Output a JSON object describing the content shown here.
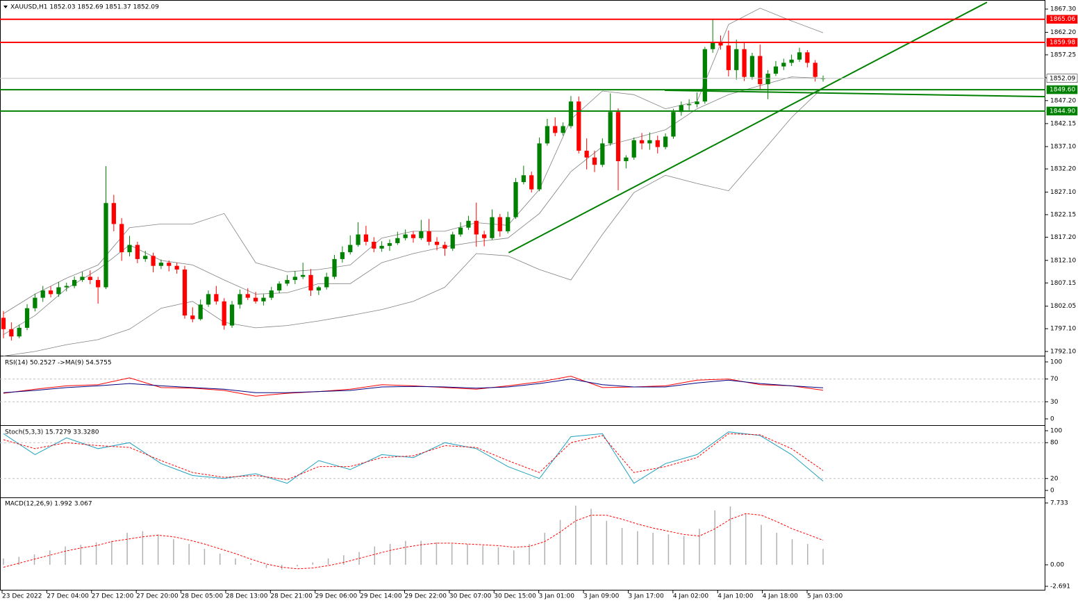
{
  "chart_data": [
    {
      "type": "candlestick",
      "title": "XAUUSD,H1  1852.03 1852.69 1851.37 1852.09",
      "colors": {
        "bull": "#008000",
        "bear": "#ff0000"
      },
      "xlim": [
        -0.44,
        132.2
      ],
      "ylim": [
        1791.48,
        1868.53
      ],
      "yticks": [
        {
          "value": 1867.3,
          "label": "1867.30"
        },
        {
          "value": 1862.2,
          "label": "1862.20"
        },
        {
          "value": 1857.25,
          "label": "1857.25"
        },
        {
          "value": 1852.2,
          "label": "1852.20"
        },
        {
          "value": 1847.2,
          "label": "1847.20"
        },
        {
          "value": 1842.15,
          "label": "1842.15"
        },
        {
          "value": 1837.1,
          "label": "1837.10"
        },
        {
          "value": 1832.2,
          "label": "1832.20"
        },
        {
          "value": 1827.1,
          "label": "1827.10"
        },
        {
          "value": 1822.15,
          "label": "1822.15"
        },
        {
          "value": 1817.2,
          "label": "1817.20"
        },
        {
          "value": 1812.1,
          "label": "1812.10"
        },
        {
          "value": 1807.15,
          "label": "1807.15"
        },
        {
          "value": 1802.05,
          "label": "1802.05"
        },
        {
          "value": 1797.1,
          "label": "1797.10"
        },
        {
          "value": 1792.1,
          "label": "1792.10"
        }
      ],
      "time_axis": [
        "23 Dec 2022",
        "27 Dec 04:00",
        "27 Dec 12:00",
        "27 Dec 20:00",
        "28 Dec 05:00",
        "28 Dec 13:00",
        "28 Dec 21:00",
        "29 Dec 06:00",
        "29 Dec 14:00",
        "29 Dec 22:00",
        "30 Dec 07:00",
        "30 Dec 15:00",
        "3 Jan 01:00",
        "3 Jan 09:00",
        "3 Jan 17:00",
        "4 Jan 02:00",
        "4 Jan 10:00",
        "4 Jan 18:00",
        "5 Jan 03:00"
      ],
      "ohlc": [
        [
          1799.5,
          1801,
          1795,
          1797.0
        ],
        [
          1797.0,
          1798.5,
          1794.5,
          1795.4
        ],
        [
          1795.4,
          1798,
          1795,
          1797.3
        ],
        [
          1797.3,
          1802.5,
          1796.8,
          1801.6
        ],
        [
          1801.6,
          1804.8,
          1800.9,
          1803.9
        ],
        [
          1803.9,
          1806.5,
          1803,
          1805.5
        ],
        [
          1805.5,
          1806.4,
          1804,
          1804.7
        ],
        [
          1804.7,
          1807.4,
          1804.1,
          1806.2
        ],
        [
          1806.2,
          1807.2,
          1805.3,
          1806.5
        ],
        [
          1806.5,
          1808.6,
          1806,
          1807.8
        ],
        [
          1807.8,
          1809.6,
          1807.4,
          1808.5
        ],
        [
          1808.5,
          1809.9,
          1806.9,
          1807.8
        ],
        [
          1807.8,
          1808.5,
          1802.6,
          1806.2
        ],
        [
          1806.2,
          1832.8,
          1805.8,
          1824.7
        ],
        [
          1824.7,
          1826.5,
          1818.5,
          1820.1
        ],
        [
          1820.1,
          1821.4,
          1812,
          1813.9
        ],
        [
          1813.9,
          1817.5,
          1813,
          1815.5
        ],
        [
          1815.5,
          1816.2,
          1811.5,
          1812.4
        ],
        [
          1812.4,
          1814.2,
          1811.8,
          1813.1
        ],
        [
          1813.1,
          1813.8,
          1809.5,
          1810.9
        ],
        [
          1810.9,
          1812.3,
          1810.2,
          1811.6
        ],
        [
          1811.6,
          1812.1,
          1809.7,
          1810.9
        ],
        [
          1810.9,
          1811.6,
          1809.2,
          1810.1
        ],
        [
          1810.1,
          1810.9,
          1799.3,
          1800.0
        ],
        [
          1800.0,
          1801.8,
          1798.5,
          1799.2
        ],
        [
          1799.2,
          1803.5,
          1798.9,
          1802.4
        ],
        [
          1802.4,
          1805.5,
          1801.9,
          1804.7
        ],
        [
          1804.7,
          1806.5,
          1802.4,
          1803.1
        ],
        [
          1803.1,
          1803.8,
          1796.9,
          1797.8
        ],
        [
          1797.8,
          1803.2,
          1797.3,
          1802.4
        ],
        [
          1802.4,
          1805.7,
          1801.5,
          1804.7
        ],
        [
          1804.7,
          1806,
          1803.4,
          1803.9
        ],
        [
          1803.9,
          1805.2,
          1802.6,
          1803.1
        ],
        [
          1803.1,
          1804.7,
          1802.2,
          1803.9
        ],
        [
          1803.9,
          1806.3,
          1803.4,
          1805.5
        ],
        [
          1805.5,
          1807.5,
          1804.9,
          1807.0
        ],
        [
          1807.0,
          1808.9,
          1806.5,
          1807.8
        ],
        [
          1807.8,
          1809.8,
          1806.9,
          1808.5
        ],
        [
          1808.5,
          1811.6,
          1808,
          1808.9
        ],
        [
          1808.9,
          1810.2,
          1804.3,
          1805.5
        ],
        [
          1805.5,
          1806.5,
          1804.5,
          1806.2
        ],
        [
          1806.2,
          1809.4,
          1805.7,
          1808.5
        ],
        [
          1808.5,
          1813.3,
          1808,
          1812.4
        ],
        [
          1812.4,
          1815.2,
          1811.6,
          1813.9
        ],
        [
          1813.9,
          1817.6,
          1813.4,
          1815.5
        ],
        [
          1815.5,
          1820.5,
          1815.1,
          1817.8
        ],
        [
          1817.8,
          1819.7,
          1815.4,
          1816.2
        ],
        [
          1816.2,
          1817.2,
          1813.9,
          1814.7
        ],
        [
          1814.7,
          1816.3,
          1814,
          1815.3
        ],
        [
          1815.3,
          1816.7,
          1814.2,
          1815.9
        ],
        [
          1815.9,
          1818.4,
          1815.5,
          1817.0
        ],
        [
          1817.0,
          1818.9,
          1816.5,
          1817.8
        ],
        [
          1817.8,
          1818.5,
          1816,
          1817.0
        ],
        [
          1817.0,
          1821,
          1816.6,
          1818.5
        ],
        [
          1818.5,
          1821.2,
          1815.4,
          1816.2
        ],
        [
          1816.2,
          1817.2,
          1814.3,
          1815.5
        ],
        [
          1815.5,
          1816.2,
          1813.1,
          1814.7
        ],
        [
          1814.7,
          1818.4,
          1814.2,
          1817.8
        ],
        [
          1817.8,
          1820.5,
          1817.3,
          1819.3
        ],
        [
          1819.3,
          1821.9,
          1818.8,
          1820.8
        ],
        [
          1820.8,
          1824.8,
          1815.1,
          1817.8
        ],
        [
          1817.8,
          1818.6,
          1815.2,
          1817.0
        ],
        [
          1817.0,
          1823.3,
          1816.6,
          1821.6
        ],
        [
          1821.6,
          1822.3,
          1817.3,
          1818.5
        ],
        [
          1818.5,
          1822.8,
          1818,
          1821.6
        ],
        [
          1821.6,
          1830.2,
          1821.2,
          1829.3
        ],
        [
          1829.3,
          1832.9,
          1828.8,
          1830.8
        ],
        [
          1830.8,
          1831.6,
          1827,
          1827.7
        ],
        [
          1827.7,
          1839.1,
          1827.3,
          1837.8
        ],
        [
          1837.8,
          1843.2,
          1837.3,
          1841.6
        ],
        [
          1841.6,
          1843.5,
          1839.4,
          1840.1
        ],
        [
          1840.1,
          1842.4,
          1839.5,
          1841.6
        ],
        [
          1841.6,
          1848.2,
          1841.1,
          1847.0
        ],
        [
          1847.0,
          1848.1,
          1835.6,
          1836.2
        ],
        [
          1836.2,
          1838.9,
          1832.1,
          1834.7
        ],
        [
          1834.7,
          1836.2,
          1831.5,
          1833.1
        ],
        [
          1833.1,
          1838.9,
          1832.6,
          1837.8
        ],
        [
          1837.8,
          1848.8,
          1837.3,
          1844.7
        ],
        [
          1844.7,
          1845.5,
          1827.5,
          1833.9
        ],
        [
          1833.9,
          1835.2,
          1832.3,
          1834.7
        ],
        [
          1834.7,
          1839.1,
          1834.2,
          1838.5
        ],
        [
          1838.5,
          1840.1,
          1836.5,
          1837.8
        ],
        [
          1837.8,
          1840.2,
          1836.4,
          1838.5
        ],
        [
          1838.5,
          1839.5,
          1835.6,
          1837.0
        ],
        [
          1837.0,
          1840.0,
          1836.5,
          1839.3
        ],
        [
          1839.3,
          1845.4,
          1838.8,
          1844.7
        ],
        [
          1844.7,
          1847.0,
          1843.9,
          1846.2
        ],
        [
          1846.2,
          1847.5,
          1845.1,
          1846.4
        ],
        [
          1846.4,
          1849.0,
          1845.7,
          1847.0
        ],
        [
          1847.0,
          1859.0,
          1846.5,
          1858.5
        ],
        [
          1858.5,
          1865.1,
          1857.7,
          1860.1
        ],
        [
          1860.1,
          1861.5,
          1858.4,
          1859.3
        ],
        [
          1859.3,
          1862.6,
          1852.5,
          1853.9
        ],
        [
          1853.9,
          1860.6,
          1851.8,
          1858.5
        ],
        [
          1858.5,
          1860.1,
          1851.5,
          1852.4
        ],
        [
          1852.4,
          1857.7,
          1851.8,
          1857.0
        ],
        [
          1857.0,
          1859.5,
          1849.7,
          1850.8
        ],
        [
          1850.8,
          1853.9,
          1847.5,
          1853.1
        ],
        [
          1853.1,
          1855.9,
          1852.6,
          1854.7
        ],
        [
          1854.7,
          1856.4,
          1853.9,
          1855.5
        ],
        [
          1855.5,
          1857.3,
          1854.8,
          1856.2
        ],
        [
          1856.2,
          1858.8,
          1855.7,
          1857.8
        ],
        [
          1857.8,
          1858.3,
          1854.5,
          1855.5
        ],
        [
          1855.5,
          1856.1,
          1851.4,
          1852.4
        ],
        [
          1852.03,
          1852.69,
          1851.37,
          1852.09
        ]
      ],
      "bands": [
        {
          "color": "#808080",
          "values": [
            1800.4,
            1804.7,
            1808.2,
            1811.1,
            1819.3,
            1820.1,
            1820.1,
            1822.4,
            1811.6,
            1809.6,
            1810.1,
            1811.1,
            1817.0,
            1818.5,
            1818.5,
            1820.4,
            1819.8,
            1827.7,
            1843.1,
            1849.3,
            1848.5,
            1845.4,
            1847.0,
            1863.9,
            1867.5,
            1864.7,
            1862.1
          ]
        },
        {
          "color": "#808080",
          "values": [
            1795.8,
            1800.0,
            1805.9,
            1810.1,
            1815.5,
            1812.1,
            1811.1,
            1807.8,
            1804.7,
            1805.0,
            1807.0,
            1807.0,
            1811.6,
            1813.6,
            1815.1,
            1816.2,
            1817.0,
            1822.4,
            1831.6,
            1837.1,
            1838.9,
            1840.8,
            1845.4,
            1848.5,
            1850.5,
            1852.4,
            1852.1
          ]
        },
        {
          "color": "#808080",
          "values": [
            1791.1,
            1792.1,
            1793.6,
            1794.7,
            1797.0,
            1801.6,
            1803.1,
            1798.5,
            1797.3,
            1797.8,
            1798.8,
            1800.0,
            1801.3,
            1803.1,
            1806.2,
            1813.6,
            1813.1,
            1810.1,
            1807.8,
            1817.8,
            1827.0,
            1830.8,
            1829.0,
            1827.4,
            1835.4,
            1843.5,
            1850.1
          ]
        }
      ],
      "trendlines": [
        {
          "color": "#008000",
          "x": [
            64.1,
            124.8
          ],
          "y": [
            1813.8,
            1868.8
          ]
        },
        {
          "color": "#008000",
          "x": [
            83.9,
            132.2
          ],
          "y": [
            1849.45,
            1848.06
          ]
        }
      ],
      "levels": [
        {
          "price": 1865.06,
          "color": "#ff0000",
          "box": "#ff0000",
          "text_color": "#ffffff"
        },
        {
          "price": 1859.98,
          "color": "#ff0000",
          "box": "#ff0000",
          "text_color": "#ffffff"
        },
        {
          "price": 1852.09,
          "color": "#c0c0c0",
          "box": "#ffffff",
          "text_color": "#000000"
        },
        {
          "price": {
            "value": 1849.6,
            "label": "1849.60"
          },
          "color": "#008000",
          "box": "#008000",
          "text_color": "#ffffff"
        },
        {
          "price": {
            "value": 1844.9,
            "label": "1844.90"
          },
          "color": "#008000",
          "box": "#008000",
          "text_color": "#ffffff"
        }
      ]
    },
    {
      "type": "indicator",
      "title": "RSI(14) 50.2527 ->MA(9) 54.5755",
      "ylim": [
        -9.8,
        108.5
      ],
      "yticks": [
        0,
        30,
        70,
        100
      ],
      "grid": "dashed",
      "series": [
        {
          "kind": "line",
          "color": "#ff0000",
          "values": [
            45,
            52,
            58,
            60,
            72,
            55,
            54,
            50,
            40,
            45,
            48,
            52,
            60,
            58,
            55,
            52,
            58,
            65,
            75,
            55,
            56,
            58,
            68,
            70,
            60,
            58,
            50.2527
          ]
        },
        {
          "kind": "line",
          "color": "#000080",
          "values": [
            46,
            50,
            55,
            58,
            62,
            58,
            55,
            52,
            46,
            46,
            48,
            50,
            56,
            57,
            56,
            54,
            56,
            62,
            70,
            60,
            56,
            56,
            63,
            68,
            62,
            58,
            54.5755
          ]
        }
      ]
    },
    {
      "type": "indicator",
      "title": "Stoch(5,3,3) 15.7279 33.3280",
      "ylim": [
        -10.5,
        107
      ],
      "yticks": [
        0,
        20,
        80,
        100
      ],
      "grid": "dashed",
      "series": [
        {
          "kind": "line",
          "color": "#20a0c0",
          "values": [
            95,
            60,
            88,
            70,
            80,
            45,
            25,
            20,
            28,
            12,
            50,
            35,
            60,
            55,
            80,
            70,
            40,
            20,
            90,
            95,
            12,
            45,
            60,
            98,
            92,
            60,
            15.7279
          ]
        },
        {
          "kind": "dashed",
          "color": "#ff0000",
          "values": [
            85,
            70,
            80,
            75,
            72,
            50,
            30,
            22,
            25,
            18,
            40,
            40,
            55,
            58,
            75,
            72,
            50,
            30,
            80,
            92,
            30,
            40,
            55,
            95,
            93,
            70,
            33.328
          ]
        }
      ]
    },
    {
      "type": "indicator",
      "title": "MACD(12,26,9) 1.992 3.067",
      "ylim": [
        -3.04,
        8.34
      ],
      "yticks": [
        -2.691,
        {
          "value": 0,
          "label": "0.00"
        },
        7.733
      ],
      "grid": "none",
      "series": [
        {
          "kind": "histogram",
          "color": "#b0b0b0",
          "values": [
            0.8,
            1.0,
            1.3,
            1.8,
            2.3,
            2.5,
            2.8,
            3.0,
            4.0,
            4.2,
            3.8,
            3.2,
            2.6,
            2.0,
            1.4,
            0.8,
            0.2,
            -0.4,
            -0.6,
            -0.2,
            0.3,
            0.8,
            1.2,
            1.6,
            2.3,
            2.6,
            3.0,
            3.0,
            2.8,
            2.6,
            2.6,
            2.4,
            2.2,
            1.8,
            2.6,
            4.0,
            5.6,
            7.4,
            7.0,
            5.5,
            4.6,
            4.2,
            4.0,
            3.8,
            3.6,
            4.5,
            6.8,
            7.3,
            6.4,
            5.0,
            4.0,
            3.2,
            2.6,
            1.992
          ]
        },
        {
          "kind": "dashed",
          "color": "#ff0000",
          "values": [
            -0.3,
            0.2,
            0.7,
            1.2,
            1.7,
            2.1,
            2.4,
            2.9,
            3.2,
            3.5,
            3.7,
            3.5,
            3.1,
            2.6,
            2.0,
            1.4,
            0.7,
            0.1,
            -0.3,
            -0.5,
            -0.4,
            -0.1,
            0.3,
            0.8,
            1.3,
            1.8,
            2.2,
            2.5,
            2.7,
            2.7,
            2.6,
            2.5,
            2.4,
            2.2,
            2.3,
            2.9,
            4.1,
            5.5,
            6.2,
            6.2,
            5.7,
            5.1,
            4.6,
            4.2,
            3.8,
            3.6,
            4.5,
            5.7,
            6.4,
            6.2,
            5.4,
            4.5,
            3.8,
            3.067
          ]
        }
      ]
    }
  ]
}
